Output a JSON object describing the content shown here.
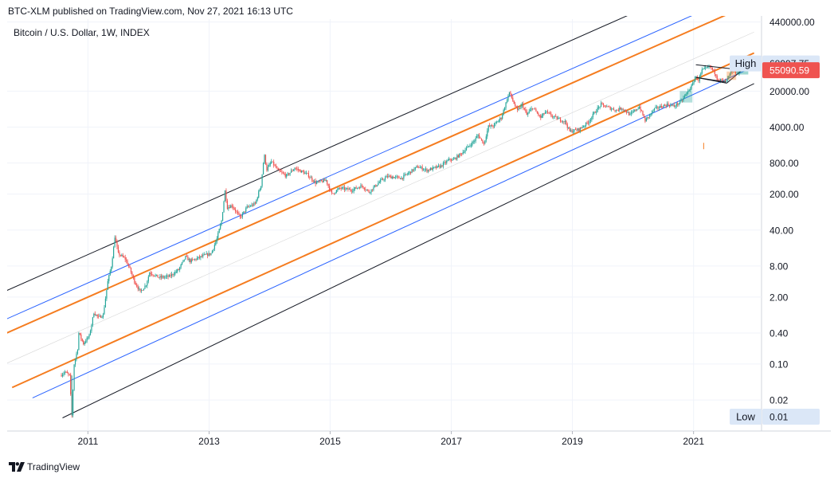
{
  "header": {
    "attribution": "BTC-XLM published on TradingView.com, Nov 27, 2021 16:13 UTC",
    "symbol": "Bitcoin / U.S. Dollar, 1W, INDEX"
  },
  "footer": {
    "brand": "TradingView",
    "logo_icon": "tradingview-logo-icon"
  },
  "colors": {
    "up": "#26a69a",
    "down": "#ef5350",
    "orange": "#f57c1f",
    "blue": "#2962ff",
    "black": "#131722",
    "price_badge": "#ef5350",
    "high_low_badge": "#dbe7f7",
    "grid": "#f0f3fa",
    "axis_text": "#131722"
  },
  "chart_data": {
    "type": "candlestick",
    "title": "Bitcoin / U.S. Dollar, 1W, INDEX",
    "interval": "1W",
    "y_scale": "log",
    "grid": true,
    "ylim": [
      0.005,
      500000
    ],
    "xlim": [
      "2009-09-01",
      "2022-02-15"
    ],
    "x_ticks": [
      "2011",
      "2013",
      "2015",
      "2017",
      "2019",
      "2021"
    ],
    "y_ticks": [
      0.02,
      0.1,
      0.4,
      2.0,
      8.0,
      40.0,
      200.0,
      800.0,
      4000.0,
      20000.0,
      440000.0
    ],
    "y_tick_labels": [
      "0.02",
      "0.10",
      "0.40",
      "2.00",
      "8.00",
      "40.00",
      "200.00",
      "800.00",
      "4000.00",
      "20000.00",
      "440000.00"
    ],
    "high": {
      "label": "High",
      "value": "68997.75"
    },
    "low": {
      "label": "Low",
      "value": "0.01"
    },
    "last_price": "55090.59",
    "price_path": [
      [
        "2010-07-18",
        0.06
      ],
      [
        "2010-08-15",
        0.07
      ],
      [
        "2010-09-12",
        0.06
      ],
      [
        "2010-09-26",
        0.01
      ],
      [
        "2010-10-10",
        0.1
      ],
      [
        "2010-10-31",
        0.2
      ],
      [
        "2010-11-07",
        0.4
      ],
      [
        "2010-12-05",
        0.25
      ],
      [
        "2011-01-09",
        0.35
      ],
      [
        "2011-02-06",
        1.0
      ],
      [
        "2011-03-06",
        0.8
      ],
      [
        "2011-04-03",
        0.9
      ],
      [
        "2011-05-01",
        4.0
      ],
      [
        "2011-05-22",
        8.0
      ],
      [
        "2011-06-05",
        18.0
      ],
      [
        "2011-06-12",
        30.0
      ],
      [
        "2011-07-03",
        14.0
      ],
      [
        "2011-08-14",
        11.0
      ],
      [
        "2011-09-04",
        8.0
      ],
      [
        "2011-10-09",
        4.0
      ],
      [
        "2011-11-13",
        2.5
      ],
      [
        "2011-12-18",
        3.5
      ],
      [
        "2012-01-08",
        6.0
      ],
      [
        "2012-03-04",
        4.8
      ],
      [
        "2012-05-06",
        5.0
      ],
      [
        "2012-07-01",
        6.8
      ],
      [
        "2012-08-12",
        12.0
      ],
      [
        "2012-09-09",
        10.0
      ],
      [
        "2012-10-14",
        11.0
      ],
      [
        "2012-12-02",
        12.8
      ],
      [
        "2013-01-13",
        14.0
      ],
      [
        "2013-02-17",
        27.0
      ],
      [
        "2013-03-17",
        60.0
      ],
      [
        "2013-04-07",
        230.0
      ],
      [
        "2013-04-21",
        110.0
      ],
      [
        "2013-05-19",
        120.0
      ],
      [
        "2013-07-07",
        70.0
      ],
      [
        "2013-08-18",
        110.0
      ],
      [
        "2013-10-06",
        130.0
      ],
      [
        "2013-11-10",
        300.0
      ],
      [
        "2013-11-24",
        800.0
      ],
      [
        "2013-12-01",
        1100.0
      ],
      [
        "2013-12-15",
        600.0
      ],
      [
        "2014-01-12",
        850.0
      ],
      [
        "2014-02-23",
        560.0
      ],
      [
        "2014-04-13",
        450.0
      ],
      [
        "2014-06-01",
        640.0
      ],
      [
        "2014-08-17",
        480.0
      ],
      [
        "2014-10-05",
        330.0
      ],
      [
        "2014-12-07",
        370.0
      ],
      [
        "2015-01-11",
        200.0
      ],
      [
        "2015-03-01",
        260.0
      ],
      [
        "2015-05-10",
        240.0
      ],
      [
        "2015-07-12",
        290.0
      ],
      [
        "2015-08-23",
        220.0
      ],
      [
        "2015-11-01",
        360.0
      ],
      [
        "2015-12-13",
        440.0
      ],
      [
        "2016-03-06",
        410.0
      ],
      [
        "2016-06-12",
        680.0
      ],
      [
        "2016-08-07",
        580.0
      ],
      [
        "2016-10-30",
        700.0
      ],
      [
        "2016-12-25",
        960.0
      ],
      [
        "2017-01-08",
        900.0
      ],
      [
        "2017-03-05",
        1250.0
      ],
      [
        "2017-05-21",
        2200.0
      ],
      [
        "2017-06-11",
        2800.0
      ],
      [
        "2017-07-16",
        1900.0
      ],
      [
        "2017-08-13",
        4100.0
      ],
      [
        "2017-09-10",
        4200.0
      ],
      [
        "2017-10-29",
        6100.0
      ],
      [
        "2017-12-17",
        19000.0
      ],
      [
        "2018-01-14",
        11500.0
      ],
      [
        "2018-02-04",
        8200.0
      ],
      [
        "2018-03-04",
        11000.0
      ],
      [
        "2018-04-01",
        6900.0
      ],
      [
        "2018-05-06",
        9600.0
      ],
      [
        "2018-06-24",
        6100.0
      ],
      [
        "2018-07-22",
        7900.0
      ],
      [
        "2018-09-09",
        6300.0
      ],
      [
        "2018-11-18",
        5100.0
      ],
      [
        "2018-12-16",
        3300.0
      ],
      [
        "2019-02-10",
        3600.0
      ],
      [
        "2019-04-07",
        5000.0
      ],
      [
        "2019-05-19",
        8000.0
      ],
      [
        "2019-06-23",
        11000.0
      ],
      [
        "2019-07-21",
        10000.0
      ],
      [
        "2019-09-22",
        8500.0
      ],
      [
        "2019-10-27",
        9400.0
      ],
      [
        "2019-12-15",
        6900.0
      ],
      [
        "2020-02-09",
        10000.0
      ],
      [
        "2020-03-15",
        5300.0
      ],
      [
        "2020-05-10",
        9000.0
      ],
      [
        "2020-07-26",
        11000.0
      ],
      [
        "2020-09-06",
        10200.0
      ],
      [
        "2020-10-18",
        12500.0
      ],
      [
        "2020-11-22",
        18500.0
      ],
      [
        "2020-12-27",
        27000.0
      ],
      [
        "2021-01-10",
        38000.0
      ],
      [
        "2021-01-31",
        33000.0
      ],
      [
        "2021-02-21",
        50000.0
      ],
      [
        "2021-04-11",
        60000.0
      ],
      [
        "2021-05-16",
        42000.0
      ],
      [
        "2021-05-23",
        35000.0
      ],
      [
        "2021-06-20",
        32000.0
      ],
      [
        "2021-07-18",
        31000.0
      ],
      [
        "2021-08-15",
        46000.0
      ],
      [
        "2021-09-12",
        45000.0
      ],
      [
        "2021-09-26",
        43000.0
      ],
      [
        "2021-10-17",
        61000.0
      ],
      [
        "2021-11-07",
        66000.0
      ],
      [
        "2021-11-21",
        57000.0
      ],
      [
        "2021-11-27",
        55090.59
      ]
    ],
    "channel_lines": [
      {
        "color": "black",
        "width": 1.0,
        "start": [
          "2009-07-01",
          2.2
        ],
        "end": [
          "2022-01-01",
          7200000
        ]
      },
      {
        "color": "blue",
        "width": 1.0,
        "start": [
          "2009-07-01",
          0.62
        ],
        "end": [
          "2022-01-01",
          2000000
        ]
      },
      {
        "color": "orange",
        "width": 2.0,
        "start": [
          "2009-07-01",
          0.33
        ],
        "end": [
          "2022-01-01",
          1050000
        ]
      },
      {
        "color": "gray",
        "width": 0.6,
        "start": [
          "2009-07-01",
          0.085
        ],
        "end": [
          "2022-01-01",
          280000
        ]
      },
      {
        "color": "orange",
        "width": 2.0,
        "start": [
          "2009-10-01",
          0.035
        ],
        "end": [
          "2022-01-01",
          110000
        ]
      },
      {
        "color": "blue",
        "width": 1.0,
        "start": [
          "2010-02-01",
          0.022
        ],
        "end": [
          "2022-01-01",
          60000
        ]
      },
      {
        "color": "black",
        "width": 1.0,
        "start": [
          "2010-08-01",
          0.009
        ],
        "end": [
          "2022-01-01",
          28000
        ]
      }
    ],
    "pattern_lines": [
      {
        "start": [
          "2021-01-15",
          65000
        ],
        "end": [
          "2021-11-01",
          51000
        ]
      },
      {
        "start": [
          "2021-01-15",
          37000
        ],
        "end": [
          "2021-07-15",
          30000
        ]
      },
      {
        "start": [
          "2021-01-15",
          37000
        ],
        "end": [
          "2021-07-20",
          28500
        ]
      },
      {
        "start": [
          "2021-07-20",
          28500
        ],
        "end": [
          "2021-12-10",
          70000
        ]
      }
    ]
  }
}
